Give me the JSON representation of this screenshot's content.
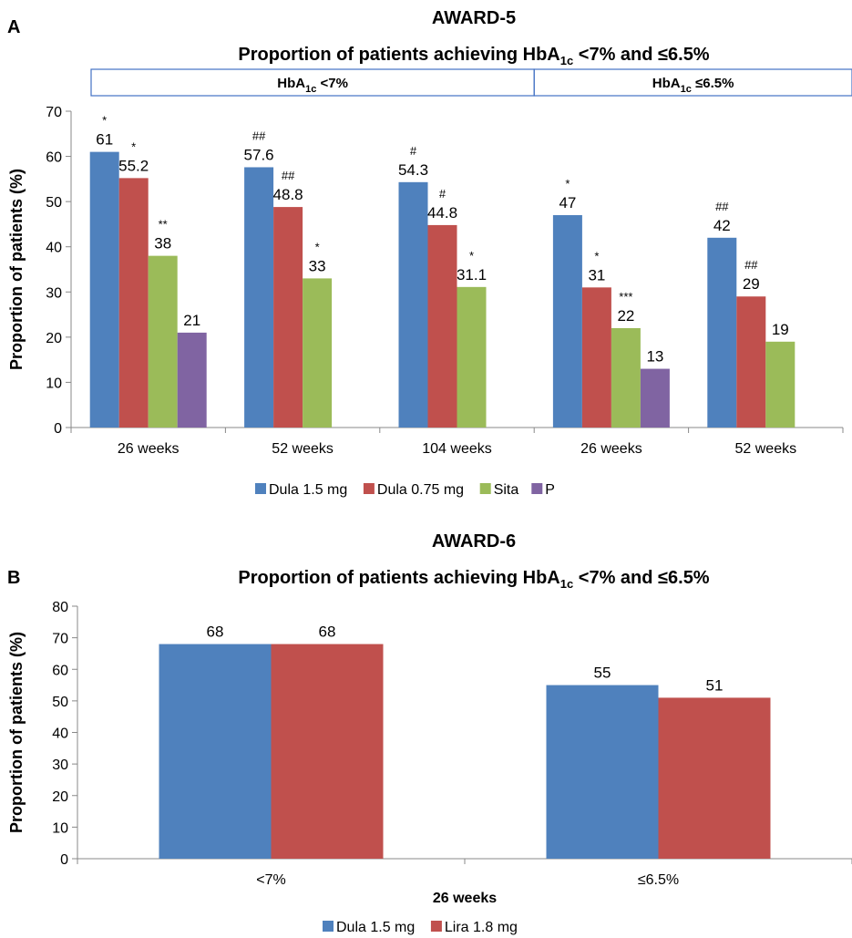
{
  "chart_data": [
    {
      "type": "bar",
      "panel": "A",
      "title": "AWARD-5",
      "subtitle": {
        "prefix": "Proportion of patients achieving HbA",
        "sub": "1c",
        "suffix": " <7% and ≤6.5%"
      },
      "ylabel": "Proportion of patients (%)",
      "ylim": [
        0,
        70
      ],
      "yticks": [
        0,
        10,
        20,
        30,
        40,
        50,
        60,
        70
      ],
      "groups": [
        {
          "label": {
            "prefix": "HbA",
            "sub": "1c",
            "suffix": " <7%"
          },
          "categories": [
            0,
            1,
            2
          ]
        },
        {
          "label": {
            "prefix": "HbA",
            "sub": "1c",
            "suffix": " ≤6.5%"
          },
          "categories": [
            3,
            4
          ]
        }
      ],
      "categories": [
        "26 weeks",
        "52 weeks",
        "104 weeks",
        "26 weeks",
        "52 weeks"
      ],
      "series": [
        {
          "name": "Dula 1.5 mg",
          "color": "#4f81bd",
          "values": [
            61,
            57.6,
            54.3,
            47,
            42
          ],
          "labels": [
            "61",
            "57.6",
            "54.3",
            "47",
            "42"
          ],
          "sig": [
            "*",
            "##",
            "#",
            "*",
            "##"
          ]
        },
        {
          "name": "Dula 0.75 mg",
          "color": "#c0504d",
          "values": [
            55.2,
            48.8,
            44.8,
            31,
            29
          ],
          "labels": [
            "55.2",
            "48.8",
            "44.8",
            "31",
            "29"
          ],
          "sig": [
            "*",
            "##",
            "#",
            "*",
            "##"
          ]
        },
        {
          "name": "Sita",
          "color": "#9bbb59",
          "values": [
            38,
            33,
            31.1,
            22,
            19
          ],
          "labels": [
            "38",
            "33",
            "31.1",
            "22",
            "19"
          ],
          "sig": [
            "**",
            "*",
            "*",
            "***",
            ""
          ]
        },
        {
          "name": "P",
          "color": "#8064a2",
          "values": [
            21,
            null,
            null,
            13,
            null
          ],
          "labels": [
            "21",
            "",
            "",
            "13",
            ""
          ],
          "sig": [
            "",
            "",
            "",
            "",
            ""
          ]
        }
      ],
      "legend": "bottom"
    },
    {
      "type": "bar",
      "panel": "B",
      "title": "AWARD-6",
      "subtitle": {
        "prefix": "Proportion of patients achieving HbA",
        "sub": "1c",
        "suffix": " <7% and ≤6.5%"
      },
      "ylabel": "Proportion of patients (%)",
      "xlabel": "26 weeks",
      "ylim": [
        0,
        80
      ],
      "yticks": [
        0,
        10,
        20,
        30,
        40,
        50,
        60,
        70,
        80
      ],
      "categories": [
        "<7%",
        "≤6.5%"
      ],
      "series": [
        {
          "name": "Dula 1.5 mg",
          "color": "#4f81bd",
          "values": [
            68,
            55
          ],
          "labels": [
            "68",
            "55"
          ]
        },
        {
          "name": "Lira 1.8 mg",
          "color": "#c0504d",
          "values": [
            68,
            51
          ],
          "labels": [
            "68",
            "51"
          ]
        }
      ],
      "legend": "bottom"
    }
  ]
}
